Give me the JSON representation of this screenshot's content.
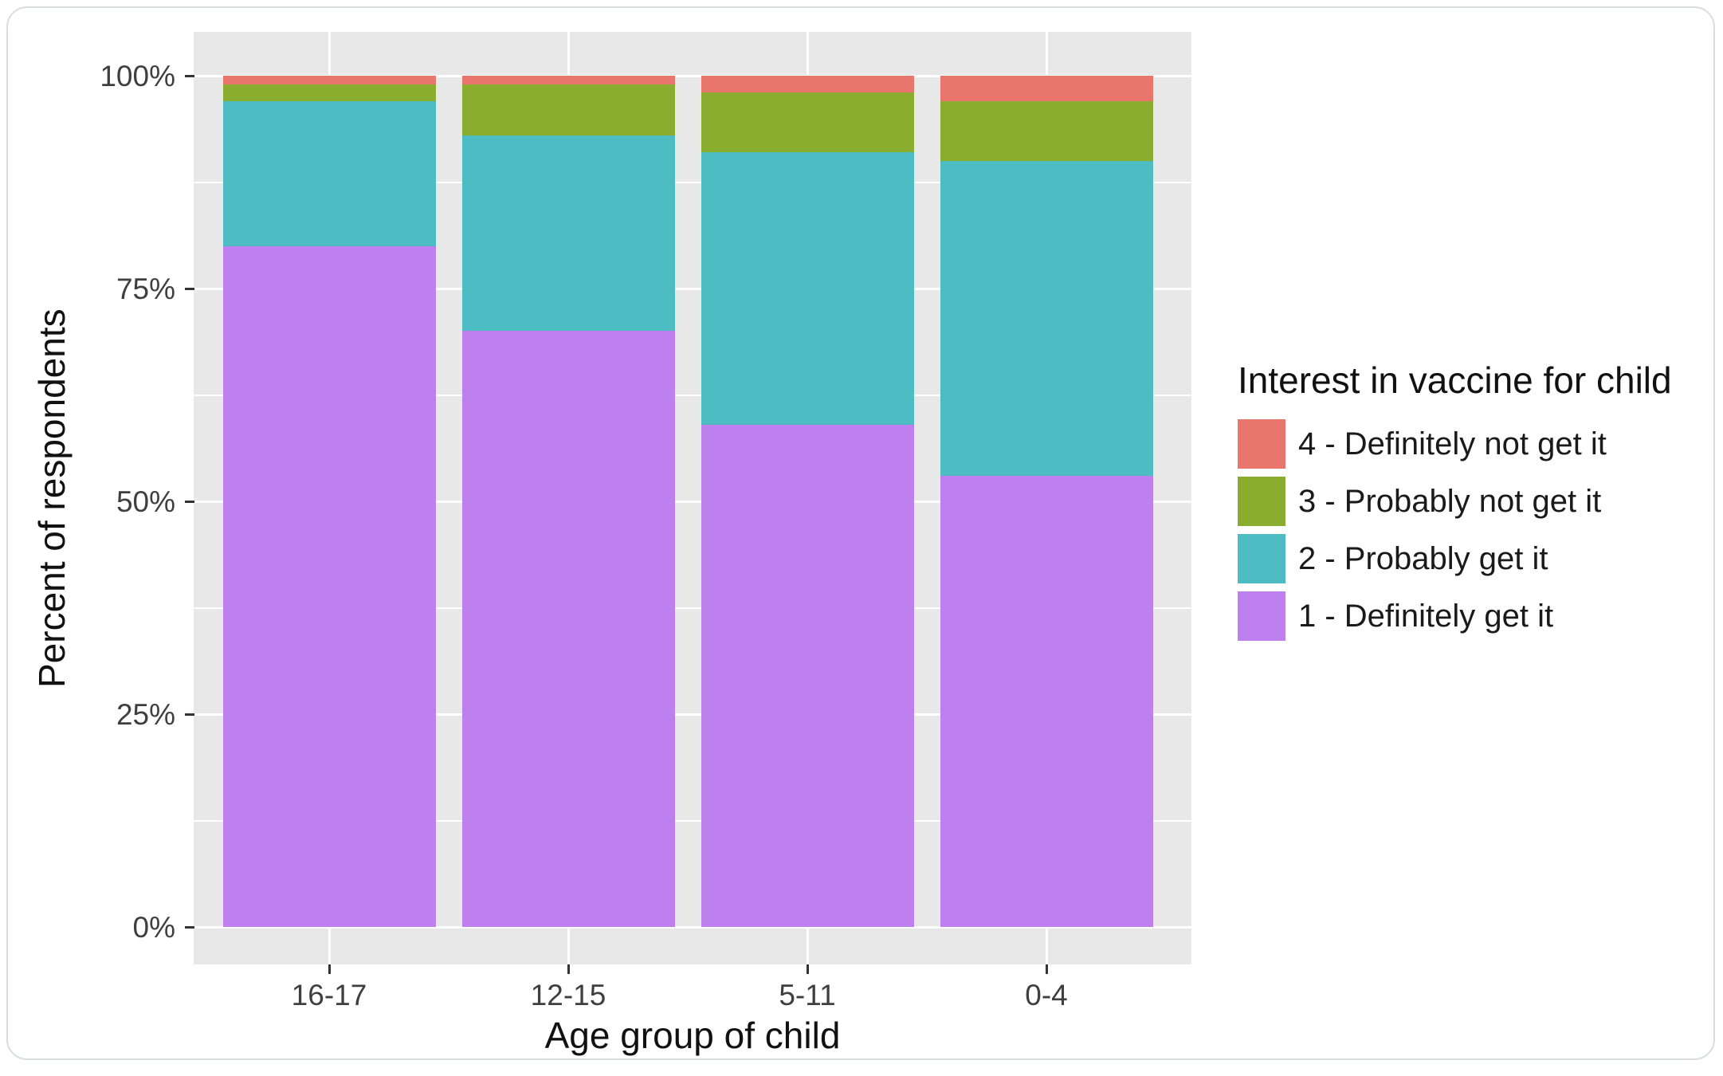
{
  "chart_data": {
    "type": "bar",
    "stacked": true,
    "normalized": "percent",
    "xlabel": "Age group of child",
    "ylabel": "Percent of respondents",
    "categories": [
      "16-17",
      "12-15",
      "5-11",
      "0-4"
    ],
    "series": [
      {
        "name": "4 - Definitely not get it",
        "color": "#E8766D",
        "values": [
          1,
          1,
          2,
          3
        ]
      },
      {
        "name": "3 - Probably not get it",
        "color": "#8BAD2F",
        "values": [
          2,
          6,
          7,
          7
        ]
      },
      {
        "name": "2 - Probably get it",
        "color": "#4EBDC3",
        "values": [
          17,
          23,
          32,
          37
        ]
      },
      {
        "name": "1 - Definitely get it",
        "color": "#BE80EE",
        "values": [
          80,
          70,
          59,
          53
        ]
      }
    ],
    "y_ticks": [
      {
        "value": 100,
        "label": "100%"
      },
      {
        "value": 75,
        "label": "75%"
      },
      {
        "value": 50,
        "label": "50%"
      },
      {
        "value": 25,
        "label": "25%"
      },
      {
        "value": 0,
        "label": "0%"
      }
    ],
    "minor_gridlines": [
      12.5,
      37.5,
      62.5,
      87.5
    ],
    "ylim": [
      0,
      100
    ],
    "legend_title": "Interest in vaccine for child",
    "legend_position": "right",
    "panel_background": "#E8E8E8",
    "gridline_color": "#FFFFFF"
  }
}
